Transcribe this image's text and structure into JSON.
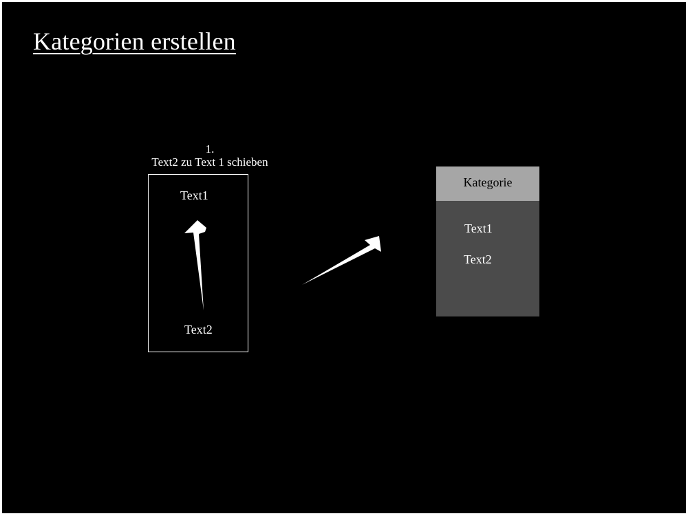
{
  "slide": {
    "title": "Kategorien erstellen"
  },
  "step": {
    "number": "1.",
    "instruction": "Text2 zu Text 1 schieben"
  },
  "source": {
    "item_top": "Text1",
    "item_bottom": "Text2"
  },
  "category": {
    "header": "Kategorie",
    "items": [
      "Text1",
      "Text2"
    ]
  },
  "colors": {
    "background": "#000000",
    "foreground": "#ffffff",
    "category_header": "#a6a6a6",
    "category_body": "#4b4b4b"
  }
}
